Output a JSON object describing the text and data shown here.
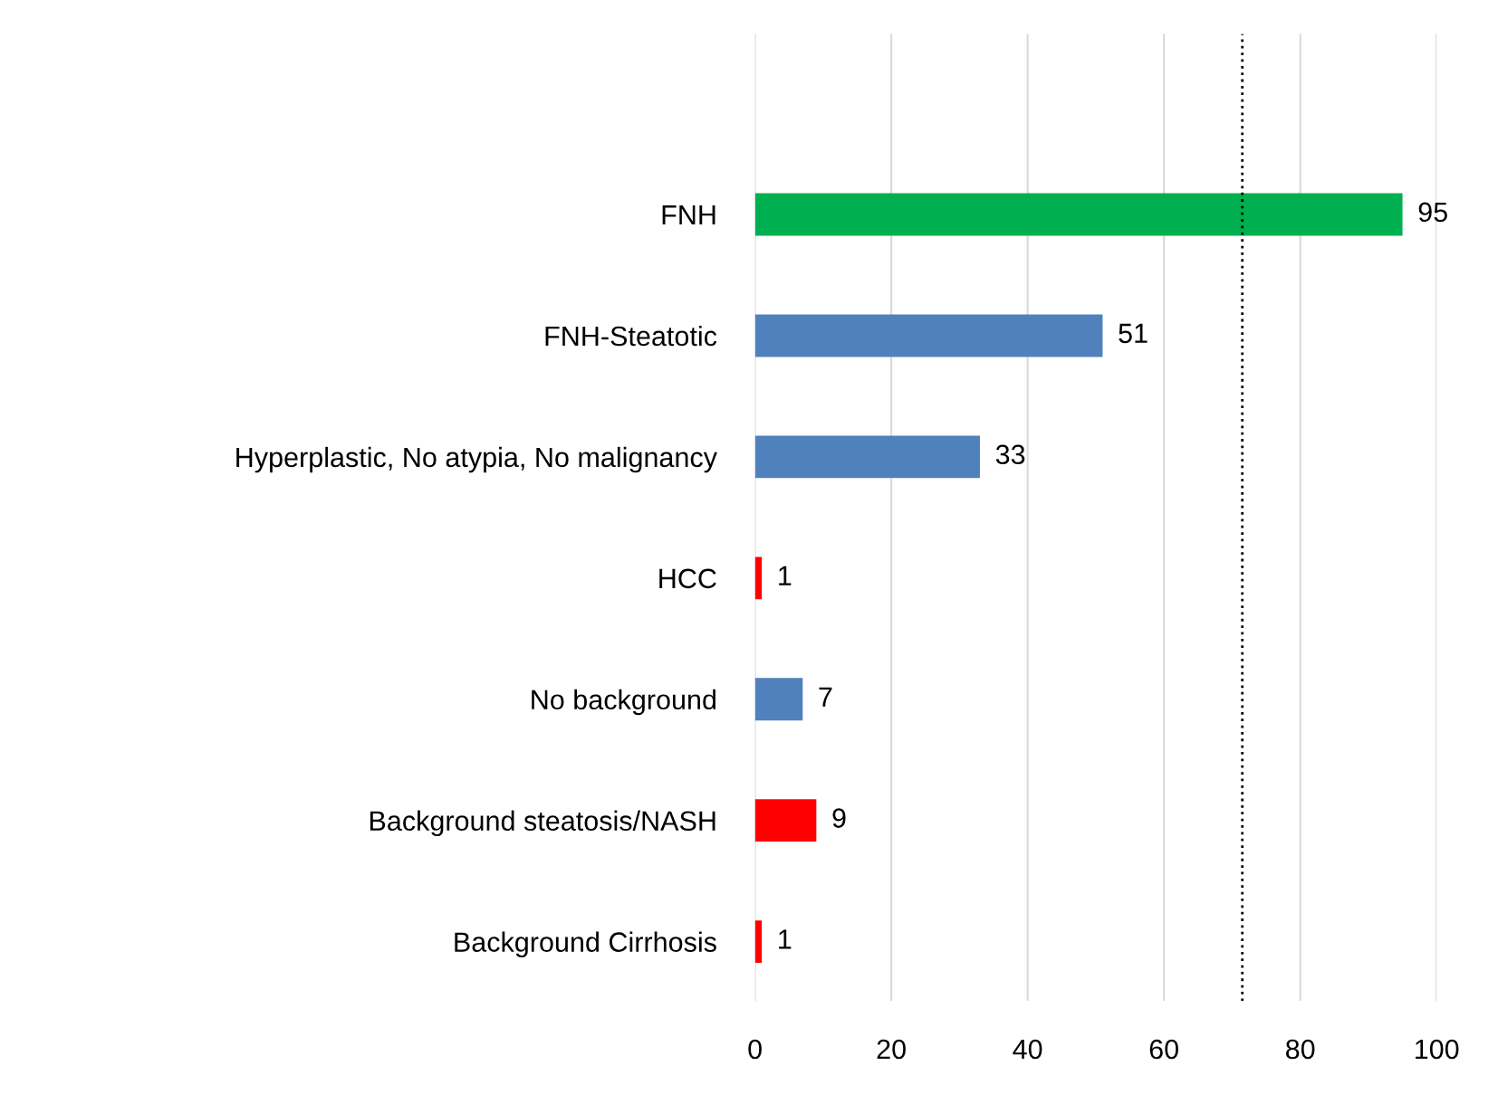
{
  "chart_data": {
    "type": "bar",
    "orientation": "horizontal",
    "categories": [
      "FNH",
      "FNH-Steatotic",
      "Hyperplastic, No atypia, No malignancy",
      "HCC",
      "No background",
      "Background steatosis/NASH",
      "Background Cirrhosis"
    ],
    "values": [
      95,
      51,
      33,
      1,
      7,
      9,
      1
    ],
    "colors": [
      "#00b050",
      "#4f81bd",
      "#4f81bd",
      "#ff0000",
      "#4f81bd",
      "#ff0000",
      "#ff0000"
    ],
    "data_labels": true,
    "xlim": [
      0,
      100
    ],
    "xticks": [
      0,
      20,
      40,
      60,
      80,
      100
    ],
    "grid": "x",
    "ref_lines": [
      {
        "axis": "x",
        "value": 71.5,
        "label": null,
        "color": "#000000",
        "line_style": "dotted"
      }
    ]
  }
}
